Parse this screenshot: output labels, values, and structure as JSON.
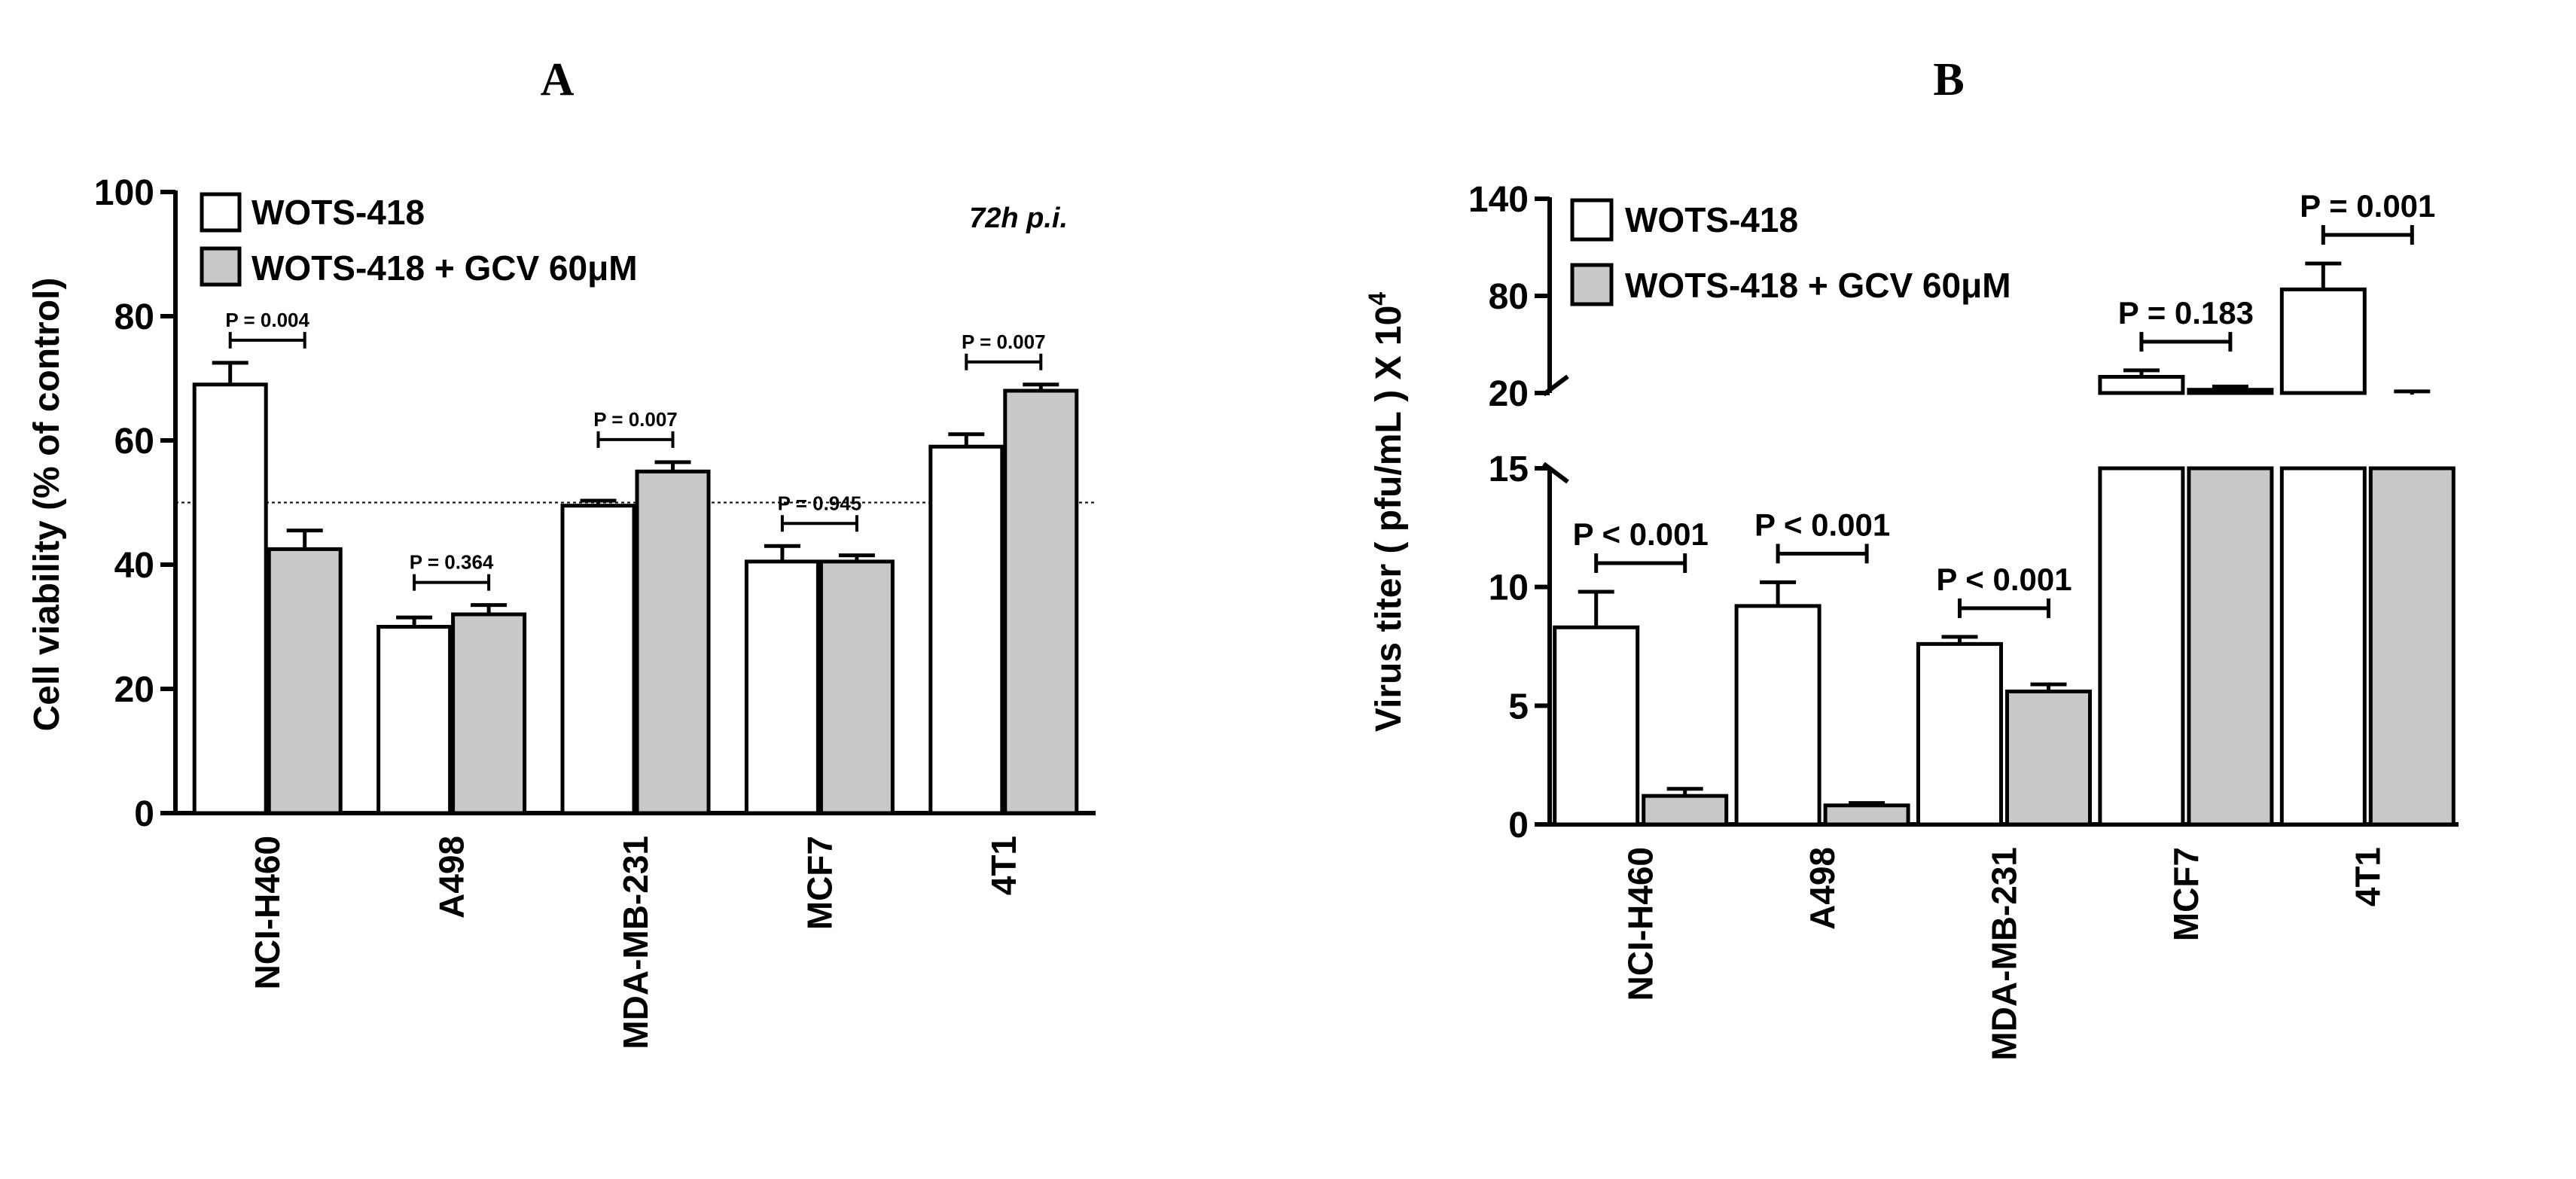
{
  "colors": {
    "bar_a": "#ffffff",
    "bar_b": "#c8c8c8",
    "stroke": "#000000"
  },
  "chart_data": [
    {
      "type": "bar",
      "panel_label": "A",
      "title": "",
      "xlabel": "",
      "ylabel": "Cell viability  (% of control)",
      "ylim": [
        0,
        100
      ],
      "yticks": [
        "0",
        "20",
        "40",
        "60",
        "80",
        "100"
      ],
      "categories": [
        "NCI-H460",
        "A498",
        "MDA-MB-231",
        "MCF7",
        "4T1"
      ],
      "series": [
        {
          "name": "WOTS-418",
          "values": [
            69,
            30,
            49.5,
            40.5,
            59
          ],
          "errors": [
            3.5,
            1.5,
            0.8,
            2.5,
            2
          ]
        },
        {
          "name": "WOTS-418 + GCV 60μM",
          "values": [
            42.5,
            32,
            55,
            40.5,
            68
          ],
          "errors": [
            3,
            1.5,
            1.5,
            1,
            1
          ]
        }
      ],
      "annotation": "72h p.i.",
      "reference_line": 50,
      "legend_position": "top-left",
      "grid": false,
      "pvalues": [
        "P = 0.004",
        "P = 0.364",
        "P = 0.007",
        "P = 0.945",
        "P = 0.007"
      ]
    },
    {
      "type": "bar",
      "panel_label": "B",
      "title": "",
      "xlabel": "",
      "ylabel": "Virus titer ( pfu/mL ) X 10",
      "ylabel_superscript": "4",
      "broken_axis": true,
      "ylim_lower": [
        0,
        15
      ],
      "ylim_upper": [
        20,
        140
      ],
      "yticks_lower": [
        "0",
        "5",
        "10",
        "15"
      ],
      "yticks_upper": [
        "20",
        "80",
        "140"
      ],
      "categories": [
        "NCI-H460",
        "A498",
        "MDA-MB-231",
        "MCF7",
        "4T1"
      ],
      "series": [
        {
          "name": "WOTS-418",
          "values": [
            8.3,
            9.2,
            7.6,
            30,
            84
          ],
          "errors": [
            1.5,
            1,
            0.3,
            4,
            16
          ]
        },
        {
          "name": "WOTS-418 + GCV 60μM",
          "values": [
            1.2,
            0.8,
            5.6,
            22,
            19
          ],
          "errors": [
            0.3,
            0.1,
            0.3,
            2,
            2
          ]
        }
      ],
      "legend_position": "top-left",
      "grid": false,
      "pvalues": [
        "P < 0.001",
        "P < 0.001",
        "P < 0.001",
        "P = 0.183",
        "P = 0.001"
      ]
    }
  ]
}
